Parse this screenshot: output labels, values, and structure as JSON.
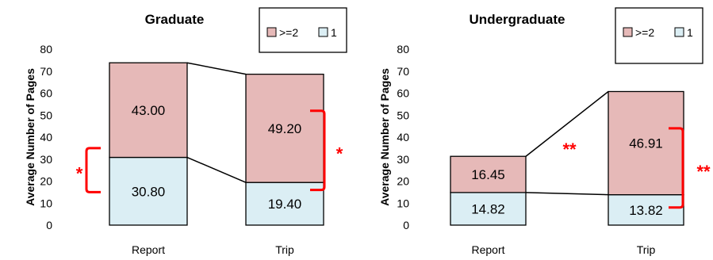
{
  "chart_data": [
    {
      "type": "bar",
      "stacked": true,
      "title": "Graduate",
      "xlabel": "",
      "ylabel": "Average Number  of Pages",
      "ylim": [
        0,
        80
      ],
      "yticks": [
        0,
        10,
        20,
        30,
        40,
        50,
        60,
        70,
        80
      ],
      "categories": [
        "Report",
        "Trip"
      ],
      "series": [
        {
          "name": "1",
          "values": [
            30.8,
            19.4
          ],
          "labels": [
            "30.80",
            "19.40"
          ],
          "color": "#DBEEF4"
        },
        {
          "name": ">=2",
          "values": [
            43.0,
            49.2
          ],
          "labels": [
            "43.00",
            "49.20"
          ],
          "color": "#E6B9B8"
        }
      ],
      "legend": {
        "placement": "top-right",
        "entries": [
          ">=2",
          "1"
        ]
      },
      "grid": false,
      "annotations": [
        {
          "text": "*",
          "category": "Report",
          "series": "1",
          "color": "#FF0000"
        },
        {
          "text": "*",
          "category": "Trip",
          "series": ">=2",
          "color": "#FF0000"
        }
      ]
    },
    {
      "type": "bar",
      "stacked": true,
      "title": "Undergraduate",
      "xlabel": "",
      "ylabel": "Average Number  of Pages",
      "ylim": [
        0,
        80
      ],
      "yticks": [
        0,
        10,
        20,
        30,
        40,
        50,
        60,
        70,
        80
      ],
      "categories": [
        "Report",
        "Trip"
      ],
      "series": [
        {
          "name": "1",
          "values": [
            14.82,
            13.82
          ],
          "labels": [
            "14.82",
            "13.82"
          ],
          "color": "#DBEEF4"
        },
        {
          "name": ">=2",
          "values": [
            16.45,
            46.91
          ],
          "labels": [
            "16.45",
            "46.91"
          ],
          "color": "#E6B9B8"
        }
      ],
      "legend": {
        "placement": "top-right",
        "entries": [
          ">=2",
          "1"
        ]
      },
      "grid": false,
      "annotations": [
        {
          "text": "**",
          "category": "between",
          "series": ">=2",
          "color": "#FF0000"
        },
        {
          "text": "**",
          "category": "Trip",
          "series": ">=2",
          "color": "#FF0000"
        }
      ]
    }
  ]
}
